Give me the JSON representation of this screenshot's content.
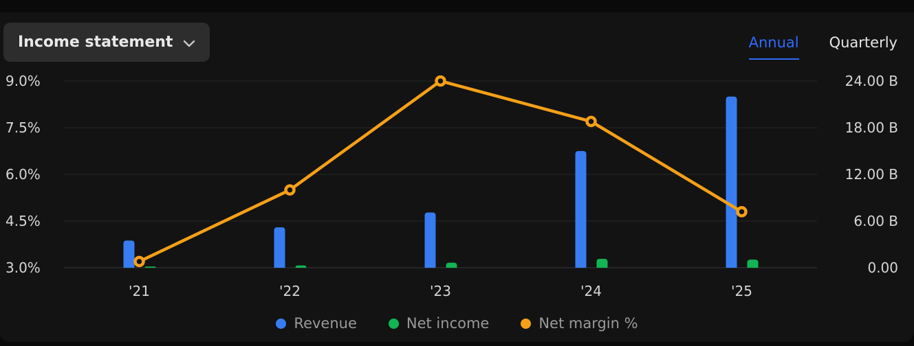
{
  "header": {
    "statement_selector": {
      "label": "Income statement"
    },
    "period_tabs": [
      {
        "label": "Annual",
        "active": true
      },
      {
        "label": "Quarterly",
        "active": false
      }
    ]
  },
  "colors": {
    "page_bg": "#0a0a0a",
    "panel_bg": "#131313",
    "button_bg": "#2d2d2d",
    "accent_link": "#2f6bfe",
    "gridline": "#272727",
    "baseline": "#3a3a3a",
    "axis_text": "#d6d6d6",
    "legend_text": "#9a9a9a"
  },
  "chart_data": {
    "type": "bar",
    "subtype": "bar-line-combo",
    "title": "Income statement (Annual)",
    "categories": [
      "'21",
      "'22",
      "'23",
      "'24",
      "'25"
    ],
    "series": [
      {
        "name": "Revenue",
        "type": "bar",
        "axis": "right",
        "unit": "B",
        "color": "#377cf1",
        "values": [
          3.5,
          5.2,
          7.1,
          15.0,
          22.0
        ]
      },
      {
        "name": "Net income",
        "type": "bar",
        "axis": "right",
        "unit": "B",
        "color": "#12b454",
        "values": [
          0.15,
          0.3,
          0.65,
          1.15,
          1.05
        ]
      },
      {
        "name": "Net margin %",
        "type": "line",
        "axis": "left",
        "unit": "%",
        "color": "#f5a018",
        "values": [
          3.2,
          5.5,
          9.0,
          7.7,
          4.8
        ]
      }
    ],
    "left_axis": {
      "labels": [
        "3.0%",
        "4.5%",
        "6.0%",
        "7.5%",
        "9.0%"
      ],
      "min": 3.0,
      "max": 9.0
    },
    "right_axis": {
      "labels": [
        "0.00",
        "6.00 B",
        "12.00 B",
        "18.00 B",
        "24.00 B"
      ],
      "min": 0,
      "max": 24
    },
    "grid": true,
    "legend_position": "bottom"
  }
}
